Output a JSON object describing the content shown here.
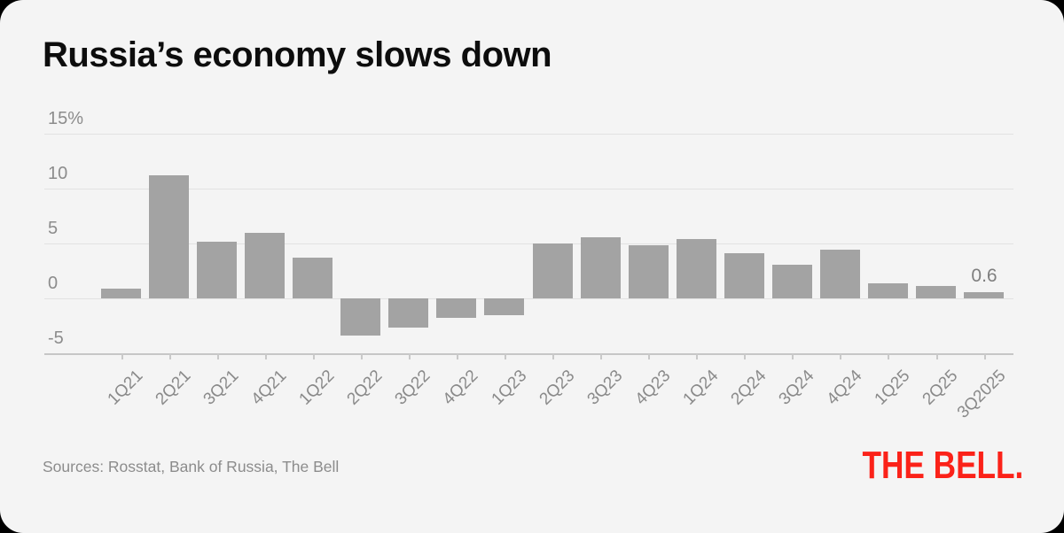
{
  "header": {
    "title": "Russia’s economy slows down"
  },
  "chart_data": {
    "type": "bar",
    "title": "Russia’s economy slows down",
    "categories": [
      "1Q21",
      "2Q21",
      "3Q21",
      "4Q21",
      "1Q22",
      "2Q22",
      "3Q22",
      "4Q22",
      "1Q23",
      "2Q23",
      "3Q23",
      "4Q23",
      "1Q24",
      "2Q24",
      "3Q24",
      "4Q24",
      "1Q25",
      "2Q25",
      "3Q2025"
    ],
    "values": [
      0.9,
      11.2,
      5.2,
      6.0,
      3.7,
      -3.4,
      -2.7,
      -1.8,
      -1.5,
      5.0,
      5.6,
      4.8,
      5.4,
      4.1,
      3.1,
      4.4,
      1.4,
      1.1,
      0.6
    ],
    "unit": "%",
    "ylim": [
      -5,
      15
    ],
    "yticks": [
      {
        "value": 15,
        "label": "15%"
      },
      {
        "value": 10,
        "label": "10"
      },
      {
        "value": 5,
        "label": "5"
      },
      {
        "value": 0,
        "label": "0"
      },
      {
        "value": -5,
        "label": "-5"
      }
    ],
    "grid": true,
    "legend": false,
    "bar_color": "#a3a3a3",
    "annotation": {
      "category": "3Q2025",
      "label": "0.6"
    }
  },
  "footer": {
    "sources": "Sources: Rosstat, Bank of Russia, The Bell",
    "logo": "THE BELL.",
    "logo_color": "#fb2219"
  }
}
